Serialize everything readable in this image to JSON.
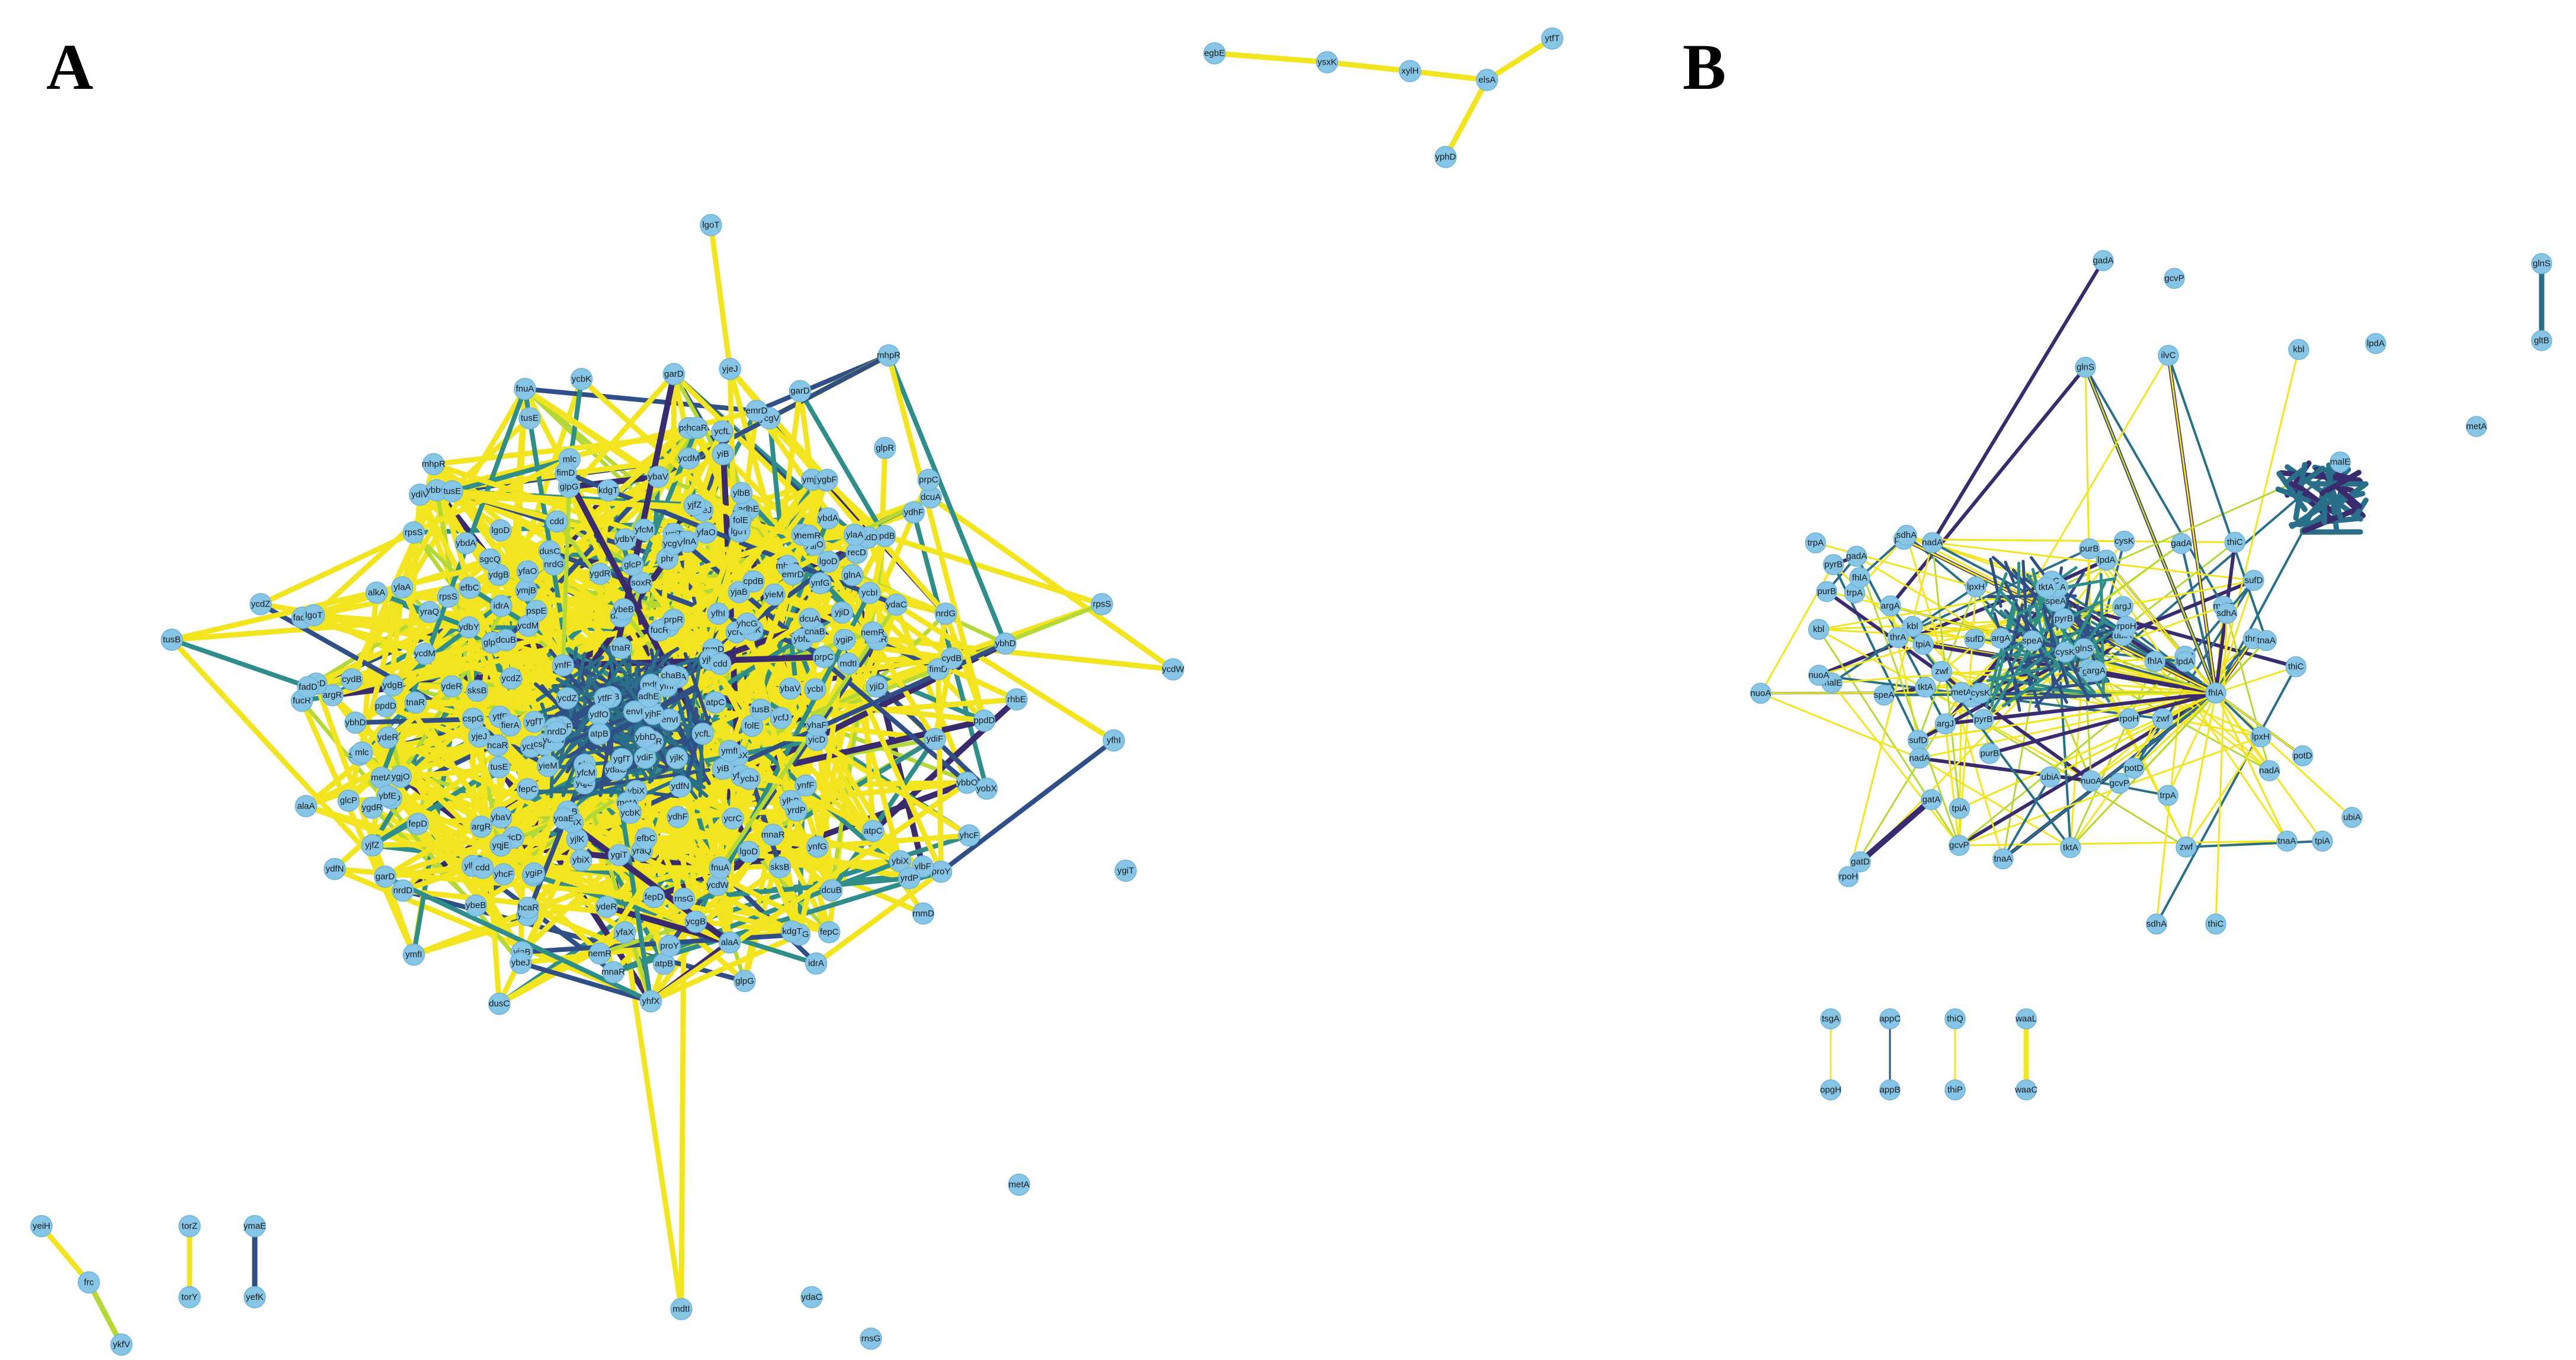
{
  "panels": {
    "a": {
      "label": "A",
      "labels_visible": [
        "ybaV",
        "ybiX",
        "hcaR",
        "lgoD",
        "dusC",
        "tusE",
        "cdd",
        "nemR",
        "ydeR",
        "ycdM",
        "tusB",
        "ycdZ",
        "ybhD",
        "metA",
        "rnsG",
        "mdtI",
        "ydaC",
        "ygiT",
        "yfhI",
        "ycdW",
        "rpsS",
        "garD",
        "fadD",
        "mhpR",
        "lgoT",
        "mnaR",
        "yidK",
        "ybfE",
        "yjaB",
        "ytfF",
        "glpG",
        "ynfF",
        "yjeJ",
        "emrD",
        "ymfI",
        "ygjO",
        "nrdD",
        "nrdG",
        "fimD",
        "fucR",
        "fierA",
        "ymjB",
        "envI",
        "soxR",
        "yjlK",
        "fepC",
        "yiB",
        "yhcG",
        "ynfG",
        "ycfJ",
        "yicD",
        "ycbK",
        "yfaO",
        "ylaA",
        "mlc",
        "sksB",
        "ydfN",
        "alaA",
        "rnmD",
        "yobX",
        "ygfT",
        "glnA",
        "ybdA",
        "ygbF",
        "fepD",
        "yieM",
        "ydiF",
        "yhfX",
        "ydfO",
        "recD",
        "ycgB",
        "pspE",
        "alkA",
        "phr",
        "ydiV",
        "yhcF",
        "ygiP",
        "dcuB",
        "ycfL",
        "yfaX",
        "ycrC",
        "ycgV",
        "yfcM",
        "ycbJ",
        "argR",
        "cpdB",
        "dcuA",
        "atpB",
        "cydB",
        "ybeJ",
        "ygdR",
        "idrA",
        "atpC",
        "ycbI",
        "yqjE",
        "rhbE",
        "yraQ",
        "ylbF",
        "ydgB",
        "fnuA",
        "ylbB",
        "efbC",
        "yjhF",
        "yjfZ",
        "ydbY",
        "chaB",
        "yhaF",
        "cspG",
        "sgcQ",
        "ybbO",
        "prpC",
        "ppdD",
        "glpR",
        "yoaE",
        "yjiD",
        "ydhF",
        "yrdP",
        "ybeB",
        "prpR",
        "proY",
        "glcP",
        "adhE",
        "folE",
        "tnaR",
        "kdgT",
        "arfD",
        "yfeO",
        "yabF",
        "ycfO",
        "yfcQ",
        "ycfA",
        "agaD",
        "fhuB",
        "yjiO",
        "ydjH",
        "fiuA",
        "pyrK",
        "yofB",
        "yfcH",
        "ycaD",
        "nrdB",
        "ycbL",
        "yfbP",
        "yciL",
        "fdoG",
        "galC",
        "pgpB",
        "srlR",
        "dapD",
        "ompA",
        "galE",
        "glpT",
        "napF",
        "ymiB",
        "rfaC",
        "pflB",
        "gltP",
        "cdsD",
        "dbpA",
        "yfjA",
        "hybC",
        "ybcH",
        "yeaT",
        "ynjC",
        "arnB",
        "ydcT",
        "ycfB"
      ]
    },
    "b": {
      "label": "B",
      "labels_visible": [
        "argJ",
        "argA",
        "argB",
        "argC",
        "argD",
        "argE",
        "argG",
        "argH",
        "argI",
        "sufD",
        "sufE",
        "sufS",
        "cysK",
        "lysC",
        "metC",
        "metE",
        "nagB",
        "pheA",
        "potD",
        "potF",
        "potG",
        "purB",
        "purD",
        "purE",
        "purH",
        "purK",
        "purL",
        "purM",
        "purN",
        "purT",
        "pyrB",
        "pyrC",
        "pyrD",
        "pyrF",
        "pyrL",
        "selA",
        "serB",
        "serC",
        "speA",
        "speB",
        "thrA",
        "thrB",
        "thrC",
        "trpA",
        "trpB",
        "trpC",
        "trpD",
        "trpE",
        "trpS",
        "tyrA",
        "tyrB",
        "fhlA",
        "fhuE",
        "gadA",
        "gadB",
        "gcvP",
        "gcvT",
        "gdhA",
        "glnS",
        "glpK",
        "gltB",
        "gltD",
        "glyA",
        "ilvC",
        "ilvD",
        "ilvE",
        "ilvG",
        "ilvM",
        "kbl",
        "lpdA",
        "malE",
        "metA",
        "metB",
        "metF",
        "metH",
        "metJ",
        "metK",
        "metL",
        "metR",
        "nadA",
        "nadB",
        "nuoA",
        "nuoB",
        "nuoC",
        "nuoE",
        "nuoF",
        "nuoG",
        "nuoH",
        "nuoI",
        "nuoJ",
        "nuoL",
        "nuoM",
        "nuoN",
        "rpoH",
        "rpoS",
        "sdhA",
        "sdhB",
        "sdhC",
        "sdhD",
        "thiC",
        "thiD",
        "thiE",
        "thiF",
        "thiG",
        "thiH",
        "thiS",
        "tktA",
        "tnaA",
        "tpiA",
        "ubiA",
        "ubiB",
        "ubiC",
        "ubiG",
        "zwf",
        "lpxH",
        "ygaL",
        "yfjD",
        "ybaS"
      ]
    }
  },
  "nodes": {
    "a": [
      "ybaV",
      "ybiX",
      "hcaR",
      "lgoD",
      "dusC",
      "tusE",
      "cdd",
      "nemR",
      "ydeR",
      "ycdM",
      "tusB",
      "ycdZ",
      "ybhD",
      "metA",
      "rnsG",
      "mdtI",
      "ydaC",
      "ygiT",
      "yfhI",
      "ycdW",
      "rpsS",
      "garD",
      "fadD",
      "mhpR",
      "lgoT",
      "mnaR",
      "yidK",
      "ybfE",
      "yjaB",
      "ytfF",
      "glpG",
      "ynfF",
      "yjeJ",
      "emrD",
      "ymfI",
      "ygjO",
      "nrdD",
      "nrdG",
      "fimD",
      "fucR",
      "fierA",
      "ymjB",
      "envI",
      "soxR",
      "yjlK",
      "fepC",
      "yiB",
      "yhcG",
      "ynfG",
      "ycfJ",
      "yicD",
      "ycbK",
      "yfaO",
      "ylaA",
      "mlc",
      "sksB",
      "ydfN",
      "alaA",
      "rnmD",
      "yobX",
      "ygfT",
      "glnA",
      "ybdA",
      "ygbF",
      "fepD",
      "yieM",
      "ydiF",
      "yhfX",
      "ydfO",
      "recD",
      "ycgB",
      "pspE",
      "alkA",
      "phr",
      "ydiV",
      "yhcF",
      "ygiP",
      "dcuB",
      "ycfL",
      "yfaX",
      "ycrC",
      "ycgV",
      "yfcM",
      "ycbJ",
      "argR",
      "cpdB",
      "dcuA",
      "atpB",
      "cydB",
      "ybeJ",
      "ygdR",
      "idrA",
      "atpC",
      "ycbI",
      "yqjE",
      "rhbE",
      "yraQ",
      "ylbF",
      "ydgB",
      "fnuA",
      "ylbB",
      "efbC",
      "yjhF",
      "yjfZ",
      "ydbY",
      "chaB",
      "yhaF",
      "cspG",
      "sgcQ",
      "ybbO",
      "prpC",
      "ppdD",
      "glpR",
      "yoaE",
      "yjiD",
      "ydhF",
      "yrdP",
      "ybeB",
      "prpR",
      "proY",
      "glcP",
      "adhE",
      "folE",
      "tnaR",
      "kdgT"
    ],
    "b": [
      "argJ",
      "argA",
      "sufD",
      "cysK",
      "potD",
      "purB",
      "pyrB",
      "speA",
      "thrA",
      "trpA",
      "fhlA",
      "gadA",
      "gcvP",
      "glnS",
      "ilvC",
      "kbl",
      "lpdA",
      "malE",
      "metA",
      "nadA",
      "nuoA",
      "rpoH",
      "sdhA",
      "thiC",
      "tktA",
      "tnaA",
      "tpiA",
      "ubiA",
      "zwf",
      "lpxH"
    ]
  },
  "colors": {
    "node_fill": "#86c5e6",
    "node_stroke": "#6fb3d6",
    "edge_palette": [
      "#f2e41f",
      "#e9e22a",
      "#b4d836",
      "#5bb46a",
      "#2f8e8a",
      "#2a6f8a",
      "#2f4f86",
      "#3a2a6e"
    ]
  }
}
